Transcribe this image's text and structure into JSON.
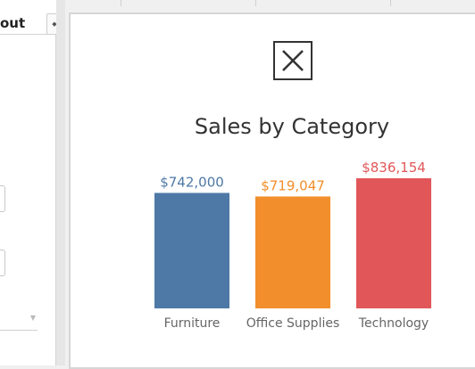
{
  "left_panel": {
    "title": "out",
    "stepper_icon": "up-down-arrows-icon"
  },
  "close_icon": "close-x-icon",
  "chart_data": {
    "type": "bar",
    "title": "Sales by Category",
    "categories": [
      "Furniture",
      "Office Supplies",
      "Technology"
    ],
    "values": [
      742000,
      719047,
      836154
    ],
    "value_labels": [
      "$742,000",
      "$719,047",
      "$836,154"
    ],
    "colors": [
      "#4e79a7",
      "#f28e2b",
      "#e15759"
    ],
    "xlabel": "",
    "ylabel": "",
    "ylim": [
      0,
      900000
    ],
    "grid": false,
    "legend": "none"
  }
}
